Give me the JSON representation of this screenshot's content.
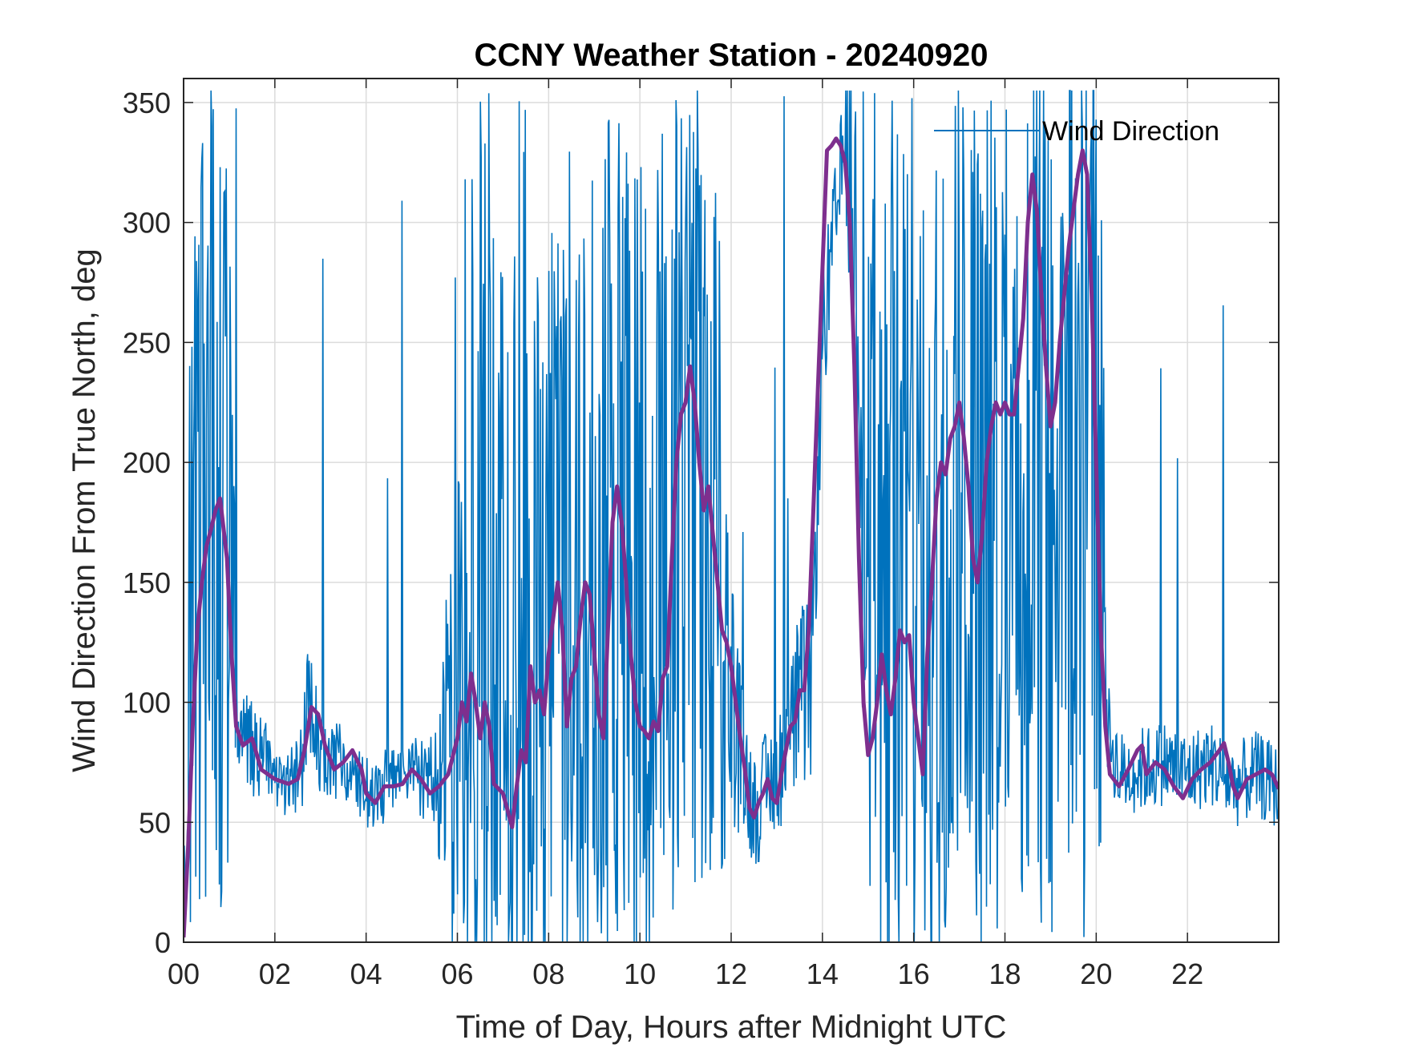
{
  "chart_data": {
    "type": "line",
    "title": "CCNY Weather Station - 20240920",
    "xlabel": "Time of Day, Hours after Midnight UTC",
    "ylabel": "Wind Direction From True North, deg",
    "xlim": [
      0,
      24
    ],
    "ylim": [
      0,
      360
    ],
    "xticks": [
      0,
      2,
      4,
      6,
      8,
      10,
      12,
      14,
      16,
      18,
      20,
      22
    ],
    "xtick_labels": [
      "00",
      "02",
      "04",
      "06",
      "08",
      "10",
      "12",
      "14",
      "16",
      "18",
      "20",
      "22"
    ],
    "yticks": [
      0,
      50,
      100,
      150,
      200,
      250,
      300,
      350
    ],
    "ytick_labels": [
      "0",
      "50",
      "100",
      "150",
      "200",
      "250",
      "300",
      "350"
    ],
    "grid": true,
    "legend_position": "top-right",
    "series": [
      {
        "name": "Wind Direction",
        "color": "#0072BD",
        "style": "raw-noisy",
        "x": [
          0.0,
          0.25,
          0.5,
          0.75,
          1.0,
          1.25,
          1.5,
          2.0,
          2.5,
          2.75,
          3.0,
          3.5,
          4.0,
          4.5,
          5.0,
          5.5,
          6.0,
          6.25,
          6.5,
          7.0,
          7.25,
          7.5,
          8.0,
          8.25,
          8.5,
          9.0,
          9.5,
          10.0,
          10.25,
          10.5,
          11.0,
          11.25,
          11.5,
          12.0,
          12.25,
          12.5,
          13.0,
          13.5,
          13.75,
          14.0,
          14.5,
          15.0,
          15.25,
          15.5,
          16.0,
          16.25,
          16.5,
          17.0,
          17.25,
          17.5,
          18.0,
          18.5,
          18.75,
          19.0,
          19.5,
          19.75,
          20.0,
          20.25,
          20.5,
          21.0,
          21.5,
          22.0,
          22.5,
          23.0,
          23.5,
          24.0
        ],
        "baseline": [
          5,
          150,
          172,
          185,
          150,
          90,
          80,
          70,
          68,
          95,
          80,
          72,
          62,
          66,
          70,
          66,
          95,
          100,
          95,
          60,
          55,
          95,
          110,
          140,
          120,
          140,
          185,
          90,
          100,
          110,
          230,
          190,
          170,
          105,
          75,
          55,
          70,
          100,
          105,
          250,
          335,
          230,
          120,
          100,
          115,
          95,
          140,
          210,
          205,
          160,
          225,
          220,
          320,
          230,
          280,
          330,
          310,
          90,
          70,
          72,
          75,
          70,
          75,
          65,
          70,
          64
        ],
        "spread": [
          20,
          180,
          180,
          180,
          120,
          20,
          20,
          18,
          18,
          30,
          18,
          18,
          16,
          16,
          16,
          20,
          120,
          150,
          170,
          180,
          180,
          180,
          180,
          180,
          180,
          180,
          180,
          180,
          180,
          180,
          180,
          180,
          170,
          60,
          30,
          25,
          25,
          40,
          40,
          30,
          25,
          160,
          170,
          170,
          170,
          120,
          180,
          180,
          180,
          180,
          180,
          180,
          180,
          180,
          180,
          180,
          180,
          20,
          18,
          18,
          18,
          18,
          18,
          18,
          18,
          18
        ]
      },
      {
        "name": "",
        "color": "#7E2F8E",
        "style": "smoothed",
        "points": [
          [
            0.0,
            2
          ],
          [
            0.1,
            40
          ],
          [
            0.2,
            90
          ],
          [
            0.3,
            130
          ],
          [
            0.4,
            150
          ],
          [
            0.5,
            165
          ],
          [
            0.6,
            172
          ],
          [
            0.7,
            180
          ],
          [
            0.8,
            185
          ],
          [
            0.95,
            160
          ],
          [
            1.05,
            120
          ],
          [
            1.15,
            90
          ],
          [
            1.3,
            82
          ],
          [
            1.5,
            85
          ],
          [
            1.7,
            72
          ],
          [
            2.0,
            68
          ],
          [
            2.3,
            66
          ],
          [
            2.5,
            68
          ],
          [
            2.65,
            80
          ],
          [
            2.8,
            98
          ],
          [
            2.95,
            95
          ],
          [
            3.1,
            82
          ],
          [
            3.3,
            72
          ],
          [
            3.5,
            75
          ],
          [
            3.7,
            80
          ],
          [
            3.9,
            72
          ],
          [
            4.0,
            62
          ],
          [
            4.2,
            58
          ],
          [
            4.4,
            65
          ],
          [
            4.6,
            65
          ],
          [
            4.8,
            66
          ],
          [
            5.0,
            72
          ],
          [
            5.2,
            68
          ],
          [
            5.4,
            62
          ],
          [
            5.6,
            65
          ],
          [
            5.8,
            70
          ],
          [
            6.0,
            85
          ],
          [
            6.1,
            100
          ],
          [
            6.2,
            92
          ],
          [
            6.3,
            112
          ],
          [
            6.4,
            100
          ],
          [
            6.5,
            85
          ],
          [
            6.6,
            100
          ],
          [
            6.7,
            90
          ],
          [
            6.8,
            66
          ],
          [
            7.0,
            62
          ],
          [
            7.1,
            55
          ],
          [
            7.2,
            48
          ],
          [
            7.3,
            65
          ],
          [
            7.4,
            80
          ],
          [
            7.5,
            75
          ],
          [
            7.6,
            115
          ],
          [
            7.7,
            100
          ],
          [
            7.8,
            105
          ],
          [
            7.9,
            95
          ],
          [
            8.0,
            120
          ],
          [
            8.1,
            135
          ],
          [
            8.2,
            150
          ],
          [
            8.3,
            130
          ],
          [
            8.4,
            90
          ],
          [
            8.5,
            110
          ],
          [
            8.6,
            115
          ],
          [
            8.7,
            135
          ],
          [
            8.8,
            150
          ],
          [
            8.9,
            145
          ],
          [
            9.0,
            120
          ],
          [
            9.1,
            95
          ],
          [
            9.2,
            85
          ],
          [
            9.3,
            130
          ],
          [
            9.4,
            175
          ],
          [
            9.5,
            190
          ],
          [
            9.6,
            175
          ],
          [
            9.7,
            150
          ],
          [
            9.8,
            120
          ],
          [
            9.9,
            100
          ],
          [
            10.0,
            90
          ],
          [
            10.1,
            88
          ],
          [
            10.2,
            85
          ],
          [
            10.3,
            92
          ],
          [
            10.4,
            88
          ],
          [
            10.5,
            110
          ],
          [
            10.6,
            115
          ],
          [
            10.7,
            160
          ],
          [
            10.8,
            200
          ],
          [
            10.9,
            220
          ],
          [
            11.0,
            225
          ],
          [
            11.1,
            240
          ],
          [
            11.2,
            225
          ],
          [
            11.3,
            200
          ],
          [
            11.4,
            180
          ],
          [
            11.5,
            190
          ],
          [
            11.6,
            170
          ],
          [
            11.7,
            150
          ],
          [
            11.8,
            130
          ],
          [
            11.9,
            125
          ],
          [
            12.0,
            115
          ],
          [
            12.1,
            100
          ],
          [
            12.2,
            85
          ],
          [
            12.3,
            72
          ],
          [
            12.4,
            56
          ],
          [
            12.5,
            52
          ],
          [
            12.6,
            58
          ],
          [
            12.7,
            62
          ],
          [
            12.8,
            68
          ],
          [
            12.9,
            60
          ],
          [
            13.0,
            58
          ],
          [
            13.1,
            70
          ],
          [
            13.2,
            80
          ],
          [
            13.3,
            90
          ],
          [
            13.4,
            92
          ],
          [
            13.5,
            105
          ],
          [
            13.6,
            105
          ],
          [
            13.7,
            130
          ],
          [
            13.8,
            180
          ],
          [
            13.9,
            230
          ],
          [
            14.0,
            280
          ],
          [
            14.1,
            330
          ],
          [
            14.2,
            332
          ],
          [
            14.3,
            335
          ],
          [
            14.4,
            332
          ],
          [
            14.5,
            325
          ],
          [
            14.6,
            300
          ],
          [
            14.7,
            240
          ],
          [
            14.8,
            160
          ],
          [
            14.9,
            100
          ],
          [
            15.0,
            78
          ],
          [
            15.1,
            85
          ],
          [
            15.2,
            100
          ],
          [
            15.3,
            120
          ],
          [
            15.4,
            105
          ],
          [
            15.5,
            95
          ],
          [
            15.6,
            110
          ],
          [
            15.7,
            130
          ],
          [
            15.8,
            125
          ],
          [
            15.9,
            128
          ],
          [
            16.0,
            100
          ],
          [
            16.1,
            85
          ],
          [
            16.2,
            70
          ],
          [
            16.3,
            120
          ],
          [
            16.4,
            150
          ],
          [
            16.5,
            185
          ],
          [
            16.6,
            200
          ],
          [
            16.7,
            195
          ],
          [
            16.8,
            210
          ],
          [
            16.9,
            215
          ],
          [
            17.0,
            225
          ],
          [
            17.1,
            210
          ],
          [
            17.2,
            190
          ],
          [
            17.3,
            160
          ],
          [
            17.4,
            150
          ],
          [
            17.5,
            170
          ],
          [
            17.6,
            200
          ],
          [
            17.7,
            215
          ],
          [
            17.8,
            225
          ],
          [
            17.9,
            220
          ],
          [
            18.0,
            225
          ],
          [
            18.1,
            220
          ],
          [
            18.2,
            220
          ],
          [
            18.3,
            240
          ],
          [
            18.4,
            260
          ],
          [
            18.5,
            300
          ],
          [
            18.6,
            320
          ],
          [
            18.7,
            305
          ],
          [
            18.8,
            270
          ],
          [
            18.9,
            240
          ],
          [
            19.0,
            215
          ],
          [
            19.1,
            225
          ],
          [
            19.2,
            250
          ],
          [
            19.3,
            270
          ],
          [
            19.4,
            290
          ],
          [
            19.5,
            305
          ],
          [
            19.6,
            320
          ],
          [
            19.7,
            330
          ],
          [
            19.8,
            320
          ],
          [
            19.9,
            270
          ],
          [
            20.0,
            200
          ],
          [
            20.1,
            130
          ],
          [
            20.2,
            90
          ],
          [
            20.3,
            70
          ],
          [
            20.5,
            65
          ],
          [
            20.7,
            72
          ],
          [
            20.9,
            80
          ],
          [
            21.0,
            82
          ],
          [
            21.1,
            70
          ],
          [
            21.3,
            75
          ],
          [
            21.5,
            72
          ],
          [
            21.7,
            65
          ],
          [
            21.9,
            60
          ],
          [
            22.1,
            68
          ],
          [
            22.3,
            72
          ],
          [
            22.5,
            75
          ],
          [
            22.7,
            80
          ],
          [
            22.8,
            83
          ],
          [
            22.9,
            75
          ],
          [
            23.0,
            65
          ],
          [
            23.1,
            60
          ],
          [
            23.3,
            68
          ],
          [
            23.5,
            70
          ],
          [
            23.7,
            72
          ],
          [
            23.85,
            70
          ],
          [
            24.0,
            64
          ]
        ]
      }
    ]
  }
}
